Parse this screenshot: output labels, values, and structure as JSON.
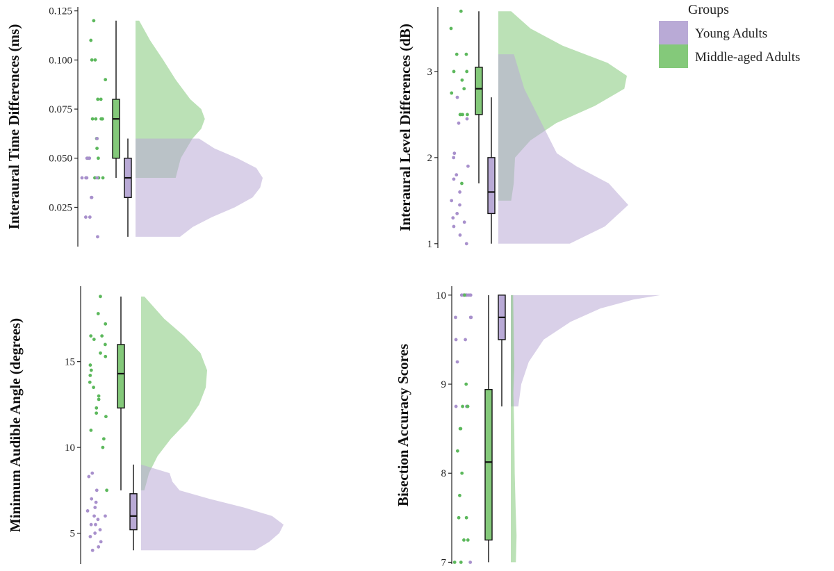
{
  "colors": {
    "young": "#b9aad6",
    "middle": "#84c97a",
    "young_point": "#a890cc",
    "middle_point": "#5cb85c",
    "axis": "#222222"
  },
  "legend": {
    "title": "Groups",
    "items": [
      {
        "label": "Young Adults",
        "series": "young"
      },
      {
        "label": "Middle-aged Adults",
        "series": "middle"
      }
    ]
  },
  "chart_data": [
    {
      "type": "raincloud",
      "ylabel": "Interaural Time Differences (ms)",
      "ylim": [
        0.005,
        0.127
      ],
      "yticks": [
        0.025,
        0.05,
        0.075,
        0.1,
        0.125
      ],
      "ytick_labels": [
        "0.025",
        "0.050",
        "0.075",
        "0.100",
        "0.125"
      ],
      "grid": false,
      "series": [
        {
          "name": "Middle-aged Adults",
          "group": "middle",
          "box": {
            "whisker_low": 0.04,
            "q1": 0.05,
            "median": 0.07,
            "q3": 0.08,
            "whisker_high": 0.12
          },
          "points": [
            0.11,
            0.08,
            0.08,
            0.07,
            0.07,
            0.07,
            0.07,
            0.06,
            0.06,
            0.055,
            0.05,
            0.05,
            0.04,
            0.04,
            0.04,
            0.12,
            0.1,
            0.1,
            0.09
          ],
          "density": [
            [
              0.04,
              0.55
            ],
            [
              0.05,
              0.62
            ],
            [
              0.06,
              0.78
            ],
            [
              0.065,
              0.9
            ],
            [
              0.07,
              0.95
            ],
            [
              0.075,
              0.9
            ],
            [
              0.08,
              0.75
            ],
            [
              0.09,
              0.55
            ],
            [
              0.1,
              0.38
            ],
            [
              0.11,
              0.2
            ],
            [
              0.12,
              0.05
            ]
          ]
        },
        {
          "name": "Young Adults",
          "group": "young",
          "box": {
            "whisker_low": 0.01,
            "q1": 0.03,
            "median": 0.04,
            "q3": 0.05,
            "whisker_high": 0.06
          },
          "points": [
            0.06,
            0.05,
            0.05,
            0.05,
            0.04,
            0.04,
            0.04,
            0.04,
            0.03,
            0.03,
            0.02,
            0.02,
            0.01
          ],
          "density": [
            [
              0.01,
              0.35
            ],
            [
              0.015,
              0.45
            ],
            [
              0.02,
              0.6
            ],
            [
              0.025,
              0.78
            ],
            [
              0.03,
              0.92
            ],
            [
              0.035,
              0.98
            ],
            [
              0.04,
              1.0
            ],
            [
              0.045,
              0.95
            ],
            [
              0.05,
              0.8
            ],
            [
              0.055,
              0.62
            ],
            [
              0.06,
              0.5
            ]
          ]
        }
      ]
    },
    {
      "type": "raincloud",
      "ylabel": "Interaural Level Differences (dB)",
      "ylim": [
        0.95,
        3.75
      ],
      "yticks": [
        1,
        2,
        3
      ],
      "ytick_labels": [
        "1",
        "2",
        "3"
      ],
      "grid": false,
      "series": [
        {
          "name": "Middle-aged Adults",
          "group": "middle",
          "box": {
            "whisker_low": 1.7,
            "q1": 2.5,
            "median": 2.8,
            "q3": 3.05,
            "whisker_high": 3.7
          },
          "points": [
            3.7,
            3.5,
            3.2,
            3.2,
            3.0,
            3.0,
            2.9,
            2.8,
            2.75,
            2.5,
            2.5,
            2.5,
            2.5,
            1.7
          ],
          "density": [
            [
              1.5,
              0.1
            ],
            [
              1.7,
              0.12
            ],
            [
              2.0,
              0.13
            ],
            [
              2.2,
              0.25
            ],
            [
              2.4,
              0.45
            ],
            [
              2.6,
              0.75
            ],
            [
              2.8,
              0.98
            ],
            [
              2.95,
              1.0
            ],
            [
              3.1,
              0.85
            ],
            [
              3.3,
              0.5
            ],
            [
              3.5,
              0.25
            ],
            [
              3.7,
              0.1
            ]
          ]
        },
        {
          "name": "Young Adults",
          "group": "young",
          "box": {
            "whisker_low": 1.0,
            "q1": 1.35,
            "median": 1.6,
            "q3": 2.0,
            "whisker_high": 2.7
          },
          "points": [
            2.7,
            2.45,
            2.4,
            2.05,
            2.0,
            1.9,
            1.8,
            1.75,
            1.6,
            1.5,
            1.45,
            1.35,
            1.3,
            1.25,
            1.2,
            1.1,
            1.0
          ],
          "density": [
            [
              1.0,
              0.55
            ],
            [
              1.2,
              0.82
            ],
            [
              1.45,
              1.0
            ],
            [
              1.7,
              0.85
            ],
            [
              1.9,
              0.6
            ],
            [
              2.05,
              0.45
            ],
            [
              2.2,
              0.4
            ],
            [
              2.5,
              0.3
            ],
            [
              2.8,
              0.2
            ],
            [
              3.2,
              0.12
            ]
          ]
        }
      ]
    },
    {
      "type": "raincloud",
      "ylabel": "Minimum Audible Angle (degrees)",
      "ylim": [
        3.2,
        19.4
      ],
      "yticks": [
        5,
        10,
        15
      ],
      "ytick_labels": [
        "5",
        "10",
        "15"
      ],
      "grid": false,
      "series": [
        {
          "name": "Middle-aged Adults",
          "group": "middle",
          "box": {
            "whisker_low": 7.5,
            "q1": 12.3,
            "median": 14.3,
            "q3": 16.0,
            "whisker_high": 18.8
          },
          "points": [
            18.8,
            17.8,
            17.2,
            16.5,
            16.5,
            16.3,
            16.0,
            15.5,
            15.3,
            14.8,
            14.5,
            14.2,
            13.8,
            13.5,
            13.0,
            12.8,
            12.3,
            12.0,
            11.8,
            11.0,
            10.5,
            10.0,
            7.5
          ],
          "density": [
            [
              7.5,
              0.05
            ],
            [
              8.5,
              0.12
            ],
            [
              9.5,
              0.25
            ],
            [
              10.5,
              0.45
            ],
            [
              11.5,
              0.7
            ],
            [
              12.5,
              0.88
            ],
            [
              13.5,
              0.98
            ],
            [
              14.5,
              1.0
            ],
            [
              15.5,
              0.9
            ],
            [
              16.5,
              0.65
            ],
            [
              17.5,
              0.35
            ],
            [
              18.8,
              0.05
            ]
          ]
        },
        {
          "name": "Young Adults",
          "group": "young",
          "box": {
            "whisker_low": 4.0,
            "q1": 5.2,
            "median": 6.0,
            "q3": 7.3,
            "whisker_high": 9.0
          },
          "points": [
            8.5,
            8.3,
            7.5,
            7.0,
            6.8,
            6.5,
            6.3,
            6.0,
            6.0,
            5.8,
            5.5,
            5.5,
            5.2,
            5.0,
            4.8,
            4.5,
            4.2,
            4.0
          ],
          "density": [
            [
              4.0,
              0.8
            ],
            [
              4.5,
              0.9
            ],
            [
              5.0,
              0.97
            ],
            [
              5.5,
              1.0
            ],
            [
              6.0,
              0.92
            ],
            [
              6.5,
              0.72
            ],
            [
              7.0,
              0.48
            ],
            [
              7.5,
              0.27
            ],
            [
              8.0,
              0.22
            ],
            [
              8.5,
              0.2
            ],
            [
              9.0,
              0.0
            ]
          ]
        }
      ]
    },
    {
      "type": "raincloud",
      "ylabel": "Bisection Accuracy Scores",
      "ylim": [
        6.98,
        10.1
      ],
      "yticks": [
        7,
        8,
        9,
        10
      ],
      "ytick_labels": [
        "7",
        "8",
        "9",
        "10"
      ],
      "grid": false,
      "series": [
        {
          "name": "Young Adults",
          "group": "young",
          "box": {
            "whisker_low": 8.75,
            "q1": 9.5,
            "median": 9.75,
            "q3": 10.0,
            "whisker_high": 10.0
          },
          "points": [
            10,
            10,
            10,
            10,
            10,
            10,
            10,
            9.75,
            9.75,
            9.75,
            9.5,
            9.5,
            9.25,
            8.75,
            8.75,
            7.0
          ],
          "density": [
            [
              8.75,
              0.05
            ],
            [
              9.0,
              0.07
            ],
            [
              9.25,
              0.12
            ],
            [
              9.5,
              0.22
            ],
            [
              9.7,
              0.4
            ],
            [
              9.85,
              0.6
            ],
            [
              9.95,
              0.82
            ],
            [
              10.0,
              1.0
            ]
          ]
        },
        {
          "name": "Middle-aged Adults",
          "group": "middle",
          "box": {
            "whisker_low": 7.0,
            "q1": 7.25,
            "median": 8.125,
            "q3": 8.94,
            "whisker_high": 10.0
          },
          "points": [
            10,
            9.0,
            8.75,
            8.75,
            8.75,
            8.5,
            8.5,
            8.25,
            8.0,
            7.75,
            7.5,
            7.5,
            7.25,
            7.25,
            7.0,
            7.0
          ],
          "density": [
            [
              7.0,
              0.22
            ],
            [
              7.3,
              0.25
            ],
            [
              7.6,
              0.21
            ],
            [
              8.0,
              0.17
            ],
            [
              8.5,
              0.15
            ],
            [
              8.9,
              0.11
            ],
            [
              9.2,
              0.15
            ],
            [
              9.5,
              0.13
            ],
            [
              10.0,
              0.1
            ]
          ]
        }
      ]
    }
  ]
}
